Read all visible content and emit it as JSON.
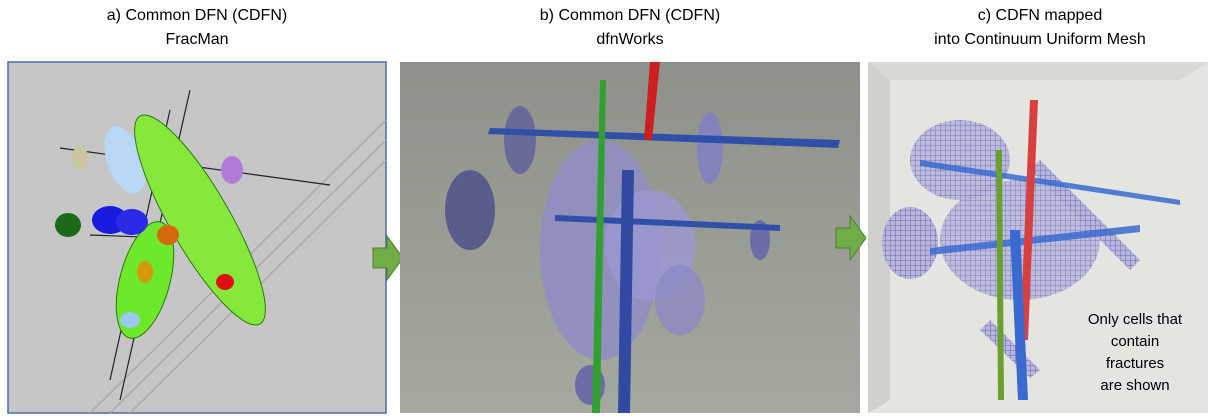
{
  "panels": [
    {
      "title": [
        "a) Common DFN (CDFN)",
        "FracMan"
      ]
    },
    {
      "title": [
        "b) Common DFN (CDFN)",
        "dfnWorks"
      ]
    },
    {
      "title": [
        "c) CDFN mapped",
        "into Continuum Uniform Mesh"
      ]
    }
  ],
  "annotation": [
    "Only cells that",
    "contain",
    "fractures",
    "are shown"
  ]
}
